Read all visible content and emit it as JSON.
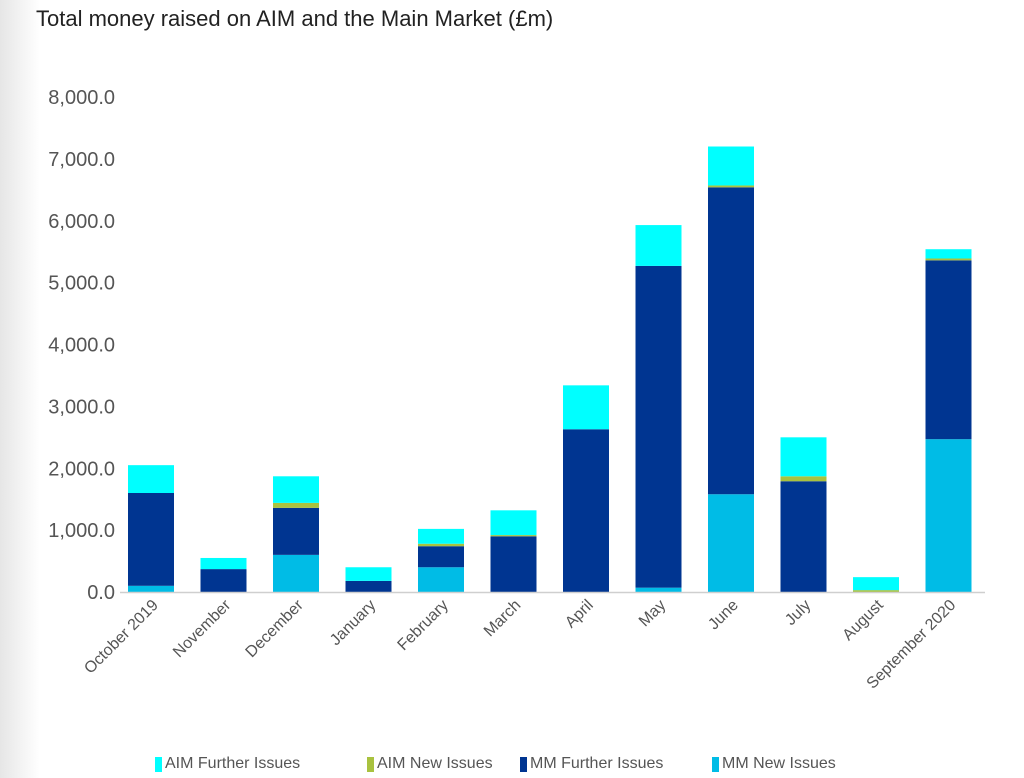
{
  "chart_data": {
    "type": "bar",
    "stacked": true,
    "title": "Total money raised on AIM and the Main Market (£m)",
    "xlabel": "",
    "ylabel": "",
    "ylim": [
      0,
      8000
    ],
    "yticks": [
      "0.0",
      "1,000.0",
      "2,000.0",
      "3,000.0",
      "4,000.0",
      "5,000.0",
      "6,000.0",
      "7,000.0",
      "8,000.0"
    ],
    "grid": false,
    "legend_position": "bottom",
    "categories": [
      "October 2019",
      "November",
      "December",
      "January",
      "February",
      "March",
      "April",
      "May",
      "June",
      "July",
      "August",
      "September 2020"
    ],
    "series": [
      {
        "name": "MM New Issues",
        "color": "#00BCE6",
        "values": [
          100,
          0,
          600,
          0,
          400,
          0,
          0,
          70,
          1580,
          0,
          0,
          2470
        ]
      },
      {
        "name": "MM Further Issues",
        "color": "#003591",
        "values": [
          1500,
          370,
          760,
          180,
          340,
          900,
          2630,
          5200,
          4960,
          1790,
          0,
          2890
        ]
      },
      {
        "name": "AIM New Issues",
        "color": "#A9C23F",
        "values": [
          0,
          0,
          80,
          0,
          40,
          20,
          0,
          0,
          30,
          80,
          30,
          30
        ]
      },
      {
        "name": "AIM Further Issues",
        "color": "#00FFFF",
        "values": [
          450,
          180,
          430,
          220,
          240,
          400,
          710,
          660,
          630,
          630,
          210,
          150
        ]
      }
    ],
    "legend_order": [
      "AIM Further Issues",
      "AIM New Issues",
      "MM Further Issues",
      "MM New Issues"
    ]
  }
}
